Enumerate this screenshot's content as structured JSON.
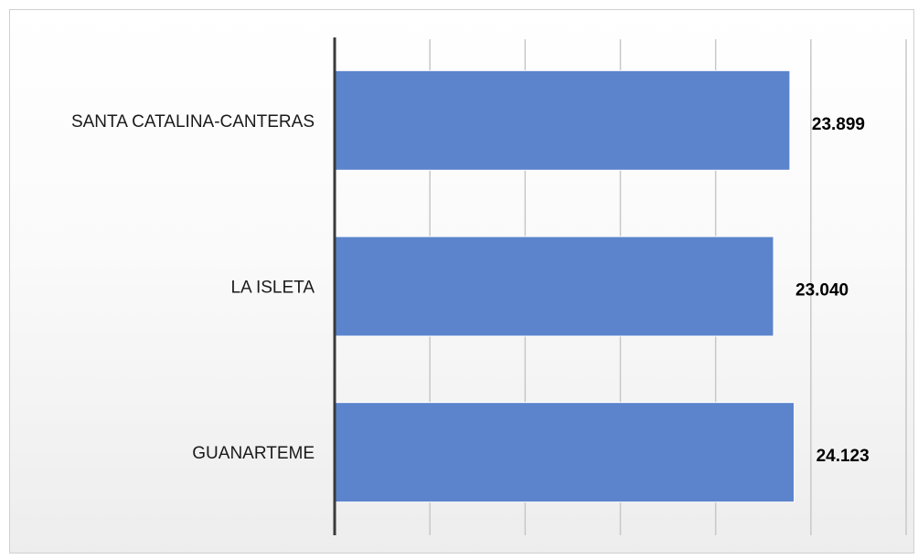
{
  "chart_data": {
    "type": "bar",
    "orientation": "horizontal",
    "categories": [
      "SANTA CATALINA-CANTERAS",
      "LA ISLETA",
      "GUANARTEME"
    ],
    "values": [
      23899,
      23040,
      24123
    ],
    "value_labels": [
      "23.899",
      "23.040",
      "24.123"
    ],
    "xlim": [
      0,
      30000
    ],
    "grid": "vertical",
    "legend": "none",
    "bar_color": "#5b84cc"
  }
}
